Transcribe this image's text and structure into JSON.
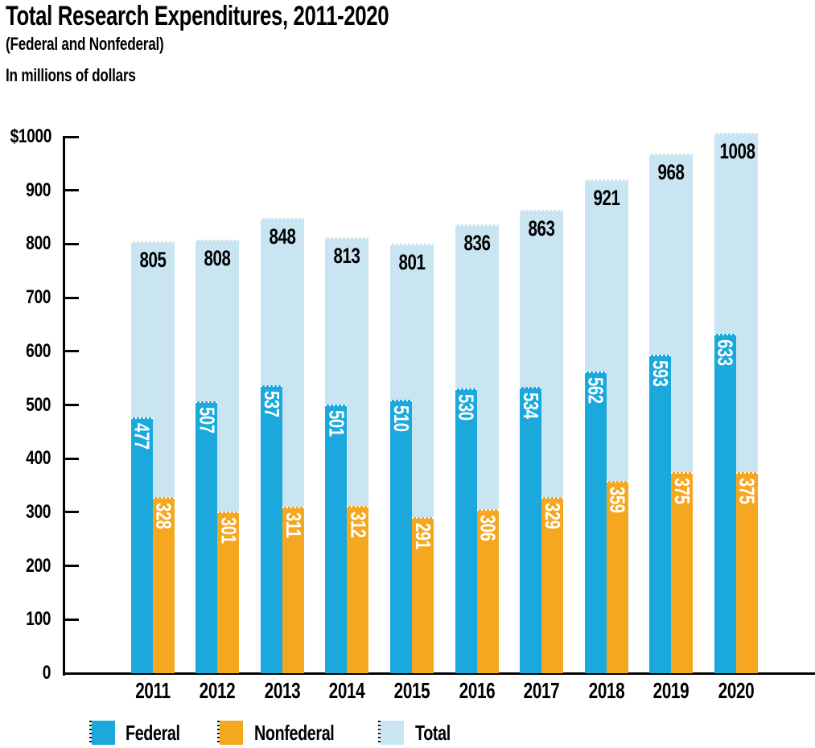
{
  "chart_data": {
    "type": "bar",
    "title": "Total Research Expenditures, 2011-2020",
    "subtitle": "(Federal and Nonfederal)",
    "units_note": "In millions of dollars",
    "categories": [
      "2011",
      "2012",
      "2013",
      "2014",
      "2015",
      "2016",
      "2017",
      "2018",
      "2019",
      "2020"
    ],
    "series": [
      {
        "name": "Federal",
        "color": "#1BA8DC",
        "label_color": "#FFFFFF",
        "label_orientation": "vertical",
        "values": [
          477,
          507,
          537,
          501,
          510,
          530,
          534,
          562,
          593,
          633
        ]
      },
      {
        "name": "Nonfederal",
        "color": "#F5A71F",
        "label_color": "#FFFFFF",
        "label_orientation": "vertical",
        "values": [
          328,
          301,
          311,
          312,
          291,
          306,
          329,
          359,
          375,
          375
        ]
      },
      {
        "name": "Total",
        "color": "#C9E5F2",
        "label_color": "#000000",
        "label_orientation": "horizontal",
        "values": [
          805,
          808,
          848,
          813,
          801,
          836,
          863,
          921,
          968,
          1008
        ]
      }
    ],
    "ylim": [
      0,
      1000
    ],
    "ytick_labels": [
      "$1000",
      "900",
      "800",
      "700",
      "600",
      "500",
      "400",
      "300",
      "200",
      "100",
      "0"
    ],
    "xlabel": "",
    "ylabel": "",
    "grid": "off",
    "legend_position": "bottom",
    "axis_color": "#000000",
    "background": "#FFFFFF"
  }
}
